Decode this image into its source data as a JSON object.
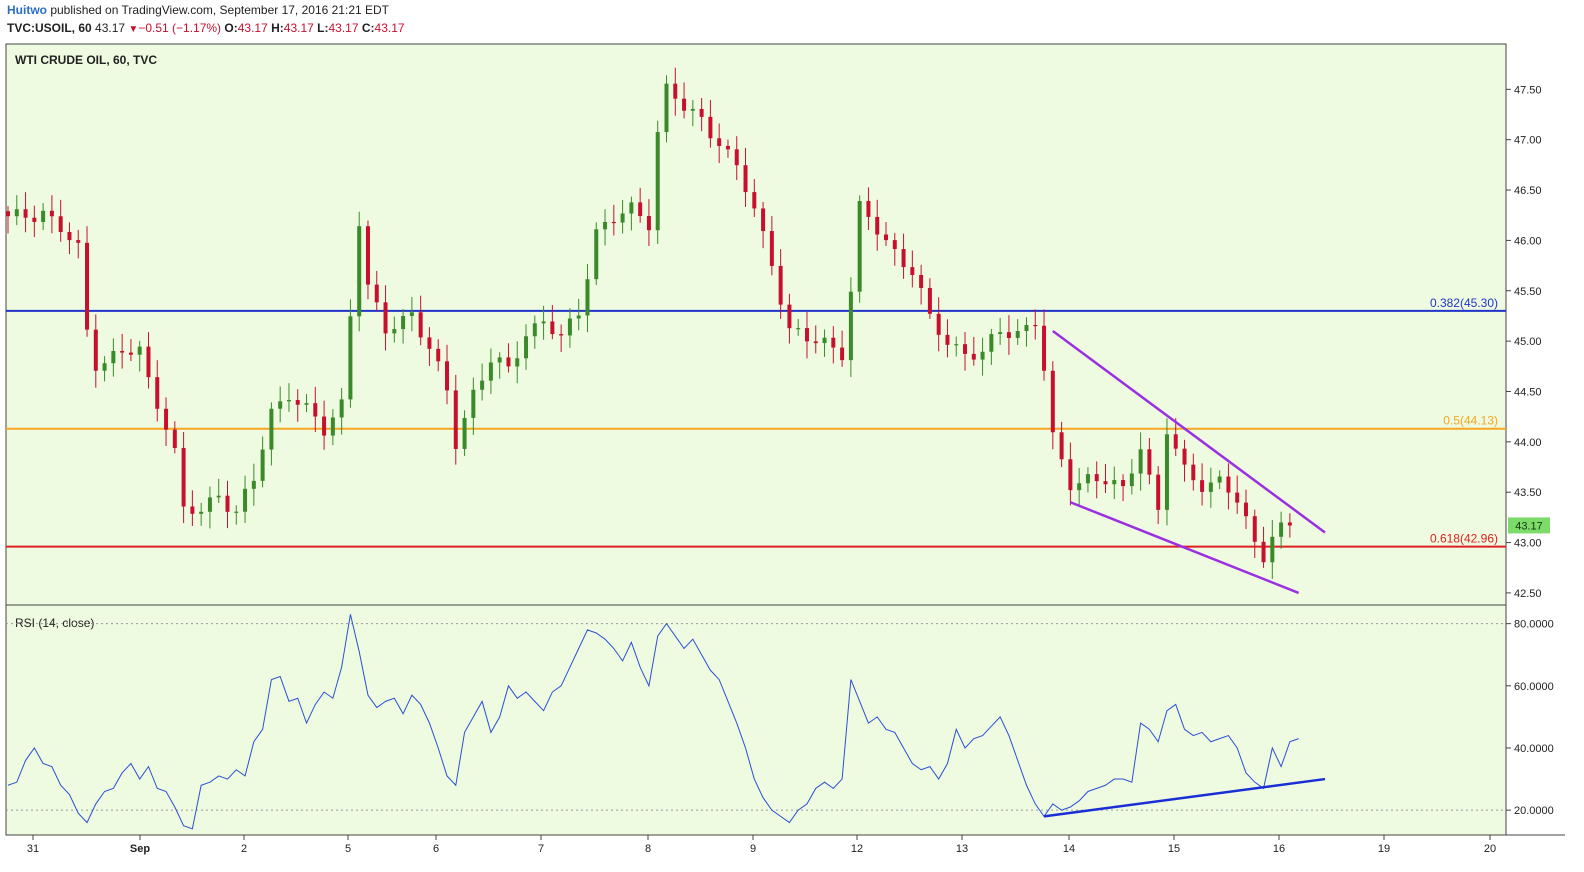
{
  "header": {
    "author": "Huitwo",
    "published_text": " published on TradingView.com, September 17, 2016 21:21 EDT",
    "symbol": "TVC:USOIL, 60",
    "last": "43.17",
    "change": "−0.51 (−1.17%)",
    "o_label": "O:",
    "o": "43.17",
    "h_label": "H:",
    "h": "43.17",
    "l_label": "L:",
    "l": "43.17",
    "c_label": "C:",
    "c": "43.17"
  },
  "colors": {
    "background": "#eefbe0",
    "up_candle": "#3a8a2a",
    "down_candle": "#c8102e",
    "fib_0382": "#2233cc",
    "fib_05": "#f5a623",
    "fib_0618": "#e02020",
    "wedge": "#9b30e0",
    "rsi_line": "#2a4fd6",
    "rsi_trend": "#1a2ed6",
    "last_price_badge": "#7ddb6a"
  },
  "chart_data": [
    {
      "type": "candlestick",
      "title": "WTI CRUDE OIL, 60, TVC",
      "ylim": [
        42.38,
        47.95
      ],
      "y_ticks": [
        "47.50",
        "47.00",
        "46.50",
        "46.00",
        "45.50",
        "45.00",
        "44.50",
        "44.00",
        "43.50",
        "43.00",
        "42.50"
      ],
      "x_ticks": [
        "31",
        "Sep",
        "2",
        "5",
        "6",
        "7",
        "8",
        "9",
        "12",
        "13",
        "14",
        "15",
        "16",
        "19",
        "20"
      ],
      "last_price": 43.17,
      "close_path": [
        [
          0,
          46.2
        ],
        [
          4,
          46.3
        ],
        [
          7,
          46.0
        ],
        [
          8,
          45.9
        ],
        [
          9,
          45.1
        ],
        [
          10,
          44.8
        ],
        [
          12,
          44.85
        ],
        [
          15,
          44.9
        ],
        [
          16,
          44.6
        ],
        [
          18,
          44.2
        ],
        [
          19,
          43.9
        ],
        [
          20,
          43.3
        ],
        [
          22,
          43.3
        ],
        [
          24,
          43.5
        ],
        [
          26,
          43.3
        ],
        [
          28,
          43.6
        ],
        [
          30,
          44.3
        ],
        [
          32,
          44.5
        ],
        [
          34,
          44.3
        ],
        [
          36,
          44.1
        ],
        [
          38,
          44.4
        ],
        [
          39,
          45.3
        ],
        [
          40,
          46.2
        ],
        [
          41,
          45.5
        ],
        [
          43,
          45.1
        ],
        [
          46,
          45.3
        ],
        [
          48,
          44.9
        ],
        [
          50,
          44.5
        ],
        [
          51,
          44.0
        ],
        [
          53,
          44.5
        ],
        [
          55,
          44.8
        ],
        [
          57,
          44.7
        ],
        [
          59,
          45.1
        ],
        [
          61,
          45.2
        ],
        [
          63,
          45.0
        ],
        [
          65,
          45.3
        ],
        [
          67,
          46.1
        ],
        [
          69,
          46.2
        ],
        [
          71,
          46.3
        ],
        [
          73,
          46.2
        ],
        [
          74,
          47.1
        ],
        [
          75,
          47.5
        ],
        [
          77,
          47.3
        ],
        [
          79,
          47.2
        ],
        [
          81,
          47.0
        ],
        [
          83,
          46.7
        ],
        [
          85,
          46.3
        ],
        [
          87,
          45.8
        ],
        [
          89,
          45.1
        ],
        [
          91,
          45.0
        ],
        [
          93,
          45.0
        ],
        [
          95,
          44.9
        ],
        [
          96,
          45.5
        ],
        [
          97,
          46.3
        ],
        [
          99,
          46.1
        ],
        [
          101,
          45.9
        ],
        [
          103,
          45.7
        ],
        [
          105,
          45.2
        ],
        [
          107,
          45.0
        ],
        [
          109,
          44.9
        ],
        [
          111,
          44.85
        ],
        [
          113,
          45.1
        ],
        [
          115,
          45.1
        ],
        [
          117,
          45.2
        ],
        [
          118,
          44.7
        ],
        [
          119,
          44.0
        ],
        [
          121,
          43.6
        ],
        [
          123,
          43.65
        ],
        [
          125,
          43.6
        ],
        [
          127,
          43.5
        ],
        [
          129,
          44.0
        ],
        [
          131,
          43.3
        ],
        [
          132,
          44.1
        ],
        [
          134,
          43.7
        ],
        [
          136,
          43.6
        ],
        [
          138,
          43.6
        ],
        [
          140,
          43.4
        ],
        [
          142,
          43.0
        ],
        [
          143,
          42.9
        ],
        [
          144,
          43.1
        ],
        [
          146,
          43.17
        ]
      ],
      "annotations": [
        {
          "label": "0.382(45.30)",
          "price": 45.3,
          "color": "#2233cc"
        },
        {
          "label": "0.5(44.13)",
          "price": 44.13,
          "color": "#f5a623"
        },
        {
          "label": "0.618(42.96)",
          "price": 42.96,
          "color": "#e02020"
        }
      ],
      "wedge_upper": [
        [
          119,
          45.1
        ],
        [
          150,
          43.1
        ]
      ],
      "wedge_lower": [
        [
          121,
          43.4
        ],
        [
          147,
          42.5
        ]
      ]
    },
    {
      "type": "line",
      "title": "RSI (14, close)",
      "ylim": [
        12,
        86
      ],
      "y_ticks": [
        "80.0000",
        "60.0000",
        "40.0000",
        "20.0000"
      ],
      "series": [
        {
          "values": [
            [
              0,
              28
            ],
            [
              1,
              29
            ],
            [
              2,
              36
            ],
            [
              3,
              40
            ],
            [
              4,
              35
            ],
            [
              5,
              34
            ],
            [
              6,
              28
            ],
            [
              7,
              25
            ],
            [
              8,
              19
            ],
            [
              9,
              16
            ],
            [
              10,
              22
            ],
            [
              11,
              26
            ],
            [
              12,
              27
            ],
            [
              13,
              32
            ],
            [
              14,
              35
            ],
            [
              15,
              30
            ],
            [
              16,
              34
            ],
            [
              17,
              27
            ],
            [
              18,
              26
            ],
            [
              19,
              21
            ],
            [
              20,
              15
            ],
            [
              21,
              14
            ],
            [
              22,
              28
            ],
            [
              23,
              29
            ],
            [
              24,
              31
            ],
            [
              25,
              30
            ],
            [
              26,
              33
            ],
            [
              27,
              31
            ],
            [
              28,
              42
            ],
            [
              29,
              46
            ],
            [
              30,
              62
            ],
            [
              31,
              63
            ],
            [
              32,
              55
            ],
            [
              33,
              56
            ],
            [
              34,
              48
            ],
            [
              35,
              54
            ],
            [
              36,
              58
            ],
            [
              37,
              56
            ],
            [
              38,
              66
            ],
            [
              39,
              83
            ],
            [
              40,
              71
            ],
            [
              41,
              57
            ],
            [
              42,
              53
            ],
            [
              43,
              55
            ],
            [
              44,
              56
            ],
            [
              45,
              51
            ],
            [
              46,
              57
            ],
            [
              47,
              54
            ],
            [
              48,
              48
            ],
            [
              49,
              40
            ],
            [
              50,
              31
            ],
            [
              51,
              28
            ],
            [
              52,
              45
            ],
            [
              53,
              50
            ],
            [
              54,
              55
            ],
            [
              55,
              45
            ],
            [
              56,
              50
            ],
            [
              57,
              60
            ],
            [
              58,
              56
            ],
            [
              59,
              58
            ],
            [
              60,
              55
            ],
            [
              61,
              52
            ],
            [
              62,
              58
            ],
            [
              63,
              60
            ],
            [
              64,
              66
            ],
            [
              65,
              72
            ],
            [
              66,
              78
            ],
            [
              67,
              77
            ],
            [
              68,
              75
            ],
            [
              69,
              72
            ],
            [
              70,
              68
            ],
            [
              71,
              74
            ],
            [
              72,
              66
            ],
            [
              73,
              60
            ],
            [
              74,
              76
            ],
            [
              75,
              80
            ],
            [
              76,
              76
            ],
            [
              77,
              72
            ],
            [
              78,
              75
            ],
            [
              79,
              70
            ],
            [
              80,
              65
            ],
            [
              81,
              62
            ],
            [
              82,
              55
            ],
            [
              83,
              48
            ],
            [
              84,
              40
            ],
            [
              85,
              30
            ],
            [
              86,
              24
            ],
            [
              87,
              20
            ],
            [
              88,
              18
            ],
            [
              89,
              16
            ],
            [
              90,
              20
            ],
            [
              91,
              22
            ],
            [
              92,
              27
            ],
            [
              93,
              29
            ],
            [
              94,
              27
            ],
            [
              95,
              30
            ],
            [
              96,
              62
            ],
            [
              97,
              55
            ],
            [
              98,
              48
            ],
            [
              99,
              50
            ],
            [
              100,
              46
            ],
            [
              101,
              45
            ],
            [
              102,
              40
            ],
            [
              103,
              35
            ],
            [
              104,
              33
            ],
            [
              105,
              34
            ],
            [
              106,
              30
            ],
            [
              107,
              35
            ],
            [
              108,
              46
            ],
            [
              109,
              40
            ],
            [
              110,
              43
            ],
            [
              111,
              44
            ],
            [
              112,
              47
            ],
            [
              113,
              50
            ],
            [
              114,
              44
            ],
            [
              115,
              36
            ],
            [
              116,
              28
            ],
            [
              117,
              22
            ],
            [
              118,
              18
            ],
            [
              119,
              22
            ],
            [
              120,
              20
            ],
            [
              121,
              21
            ],
            [
              122,
              23
            ],
            [
              123,
              26
            ],
            [
              124,
              27
            ],
            [
              125,
              28
            ],
            [
              126,
              30
            ],
            [
              127,
              30
            ],
            [
              128,
              29
            ],
            [
              129,
              48
            ],
            [
              130,
              46
            ],
            [
              131,
              42
            ],
            [
              132,
              52
            ],
            [
              133,
              54
            ],
            [
              134,
              46
            ],
            [
              135,
              44
            ],
            [
              136,
              45
            ],
            [
              137,
              42
            ],
            [
              138,
              43
            ],
            [
              139,
              44
            ],
            [
              140,
              40
            ],
            [
              141,
              32
            ],
            [
              142,
              29
            ],
            [
              143,
              27
            ],
            [
              144,
              40
            ],
            [
              145,
              34
            ],
            [
              146,
              42
            ],
            [
              147,
              43
            ]
          ]
        }
      ],
      "trendline": [
        [
          118,
          18
        ],
        [
          150,
          30
        ]
      ]
    }
  ]
}
